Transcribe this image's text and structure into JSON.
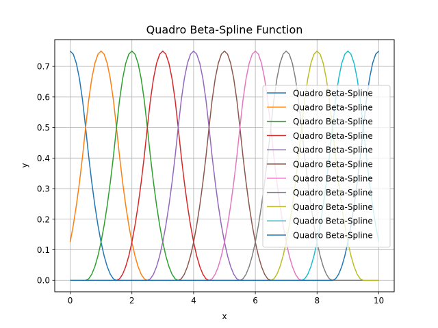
{
  "chart_data": {
    "type": "line",
    "title": "Quadro Beta-Spline Function",
    "xlabel": "x",
    "ylabel": "y",
    "xlim": [
      -0.5,
      10.5
    ],
    "ylim": [
      -0.0375,
      0.7875
    ],
    "xticks": [
      0,
      2,
      4,
      6,
      8,
      10
    ],
    "yticks": [
      0.0,
      0.1,
      0.2,
      0.3,
      0.4,
      0.5,
      0.6,
      0.7
    ],
    "grid": true,
    "legend_position": "center-right",
    "palette": [
      "#1f77b4",
      "#ff7f0e",
      "#2ca02c",
      "#d62728",
      "#9467bd",
      "#8c564b",
      "#e377c2",
      "#7f7f7f",
      "#bcbd22",
      "#17becf",
      "#1f77b4"
    ],
    "x_domain": [
      0,
      10
    ],
    "sample_count": 101,
    "series": [
      {
        "name": "Quadro Beta-Spline",
        "center": 0
      },
      {
        "name": "Quadro Beta-Spline",
        "center": 1
      },
      {
        "name": "Quadro Beta-Spline",
        "center": 2
      },
      {
        "name": "Quadro Beta-Spline",
        "center": 3
      },
      {
        "name": "Quadro Beta-Spline",
        "center": 4
      },
      {
        "name": "Quadro Beta-Spline",
        "center": 5
      },
      {
        "name": "Quadro Beta-Spline",
        "center": 6
      },
      {
        "name": "Quadro Beta-Spline",
        "center": 7
      },
      {
        "name": "Quadro Beta-Spline",
        "center": 8
      },
      {
        "name": "Quadro Beta-Spline",
        "center": 9
      },
      {
        "name": "Quadro Beta-Spline",
        "center": 10
      }
    ]
  }
}
